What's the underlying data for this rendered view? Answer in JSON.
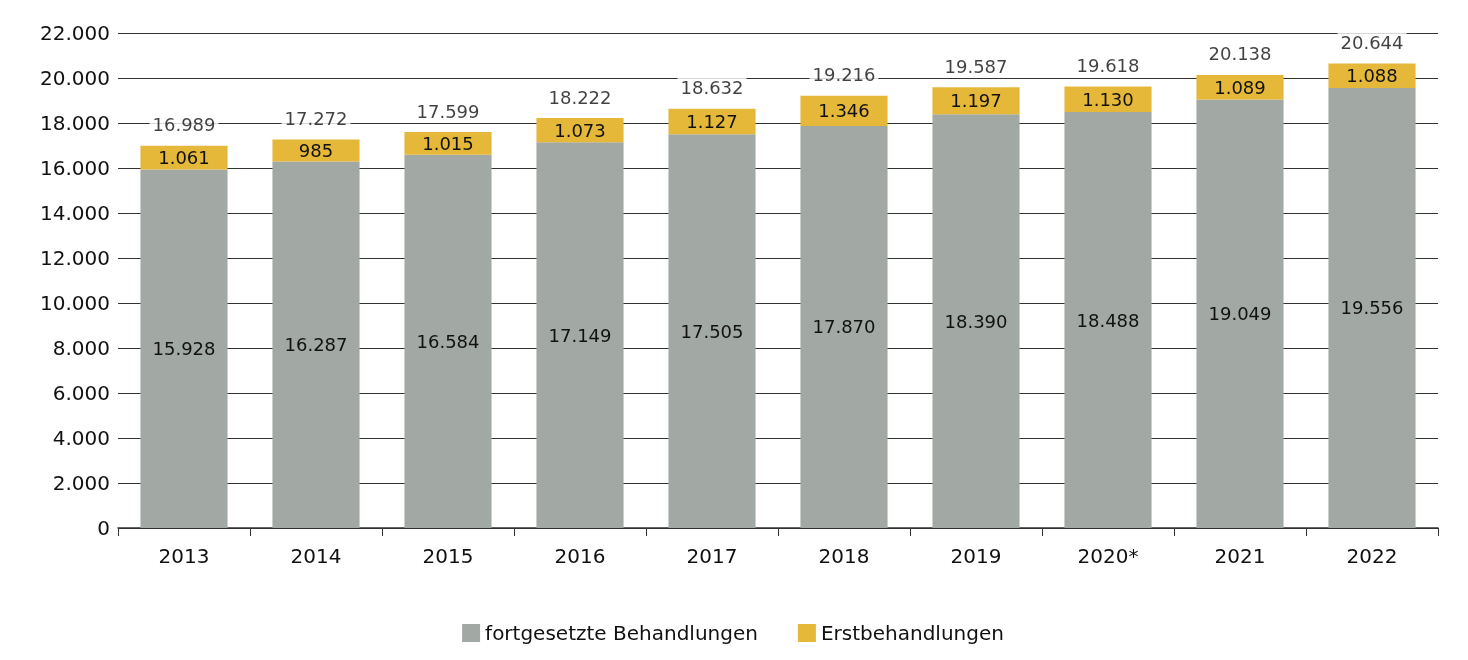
{
  "chart_data": {
    "type": "bar",
    "stacked": true,
    "categories": [
      "2013",
      "2014",
      "2015",
      "2016",
      "2017",
      "2018",
      "2019",
      "2020*",
      "2021",
      "2022"
    ],
    "series": [
      {
        "name": "fortgesetzte Behandlungen",
        "color": "#a2a8a3",
        "values": [
          15928,
          16287,
          16584,
          17149,
          17505,
          17870,
          18390,
          18488,
          19049,
          19556
        ],
        "value_labels": [
          "15.928",
          "16.287",
          "16.584",
          "17.149",
          "17.505",
          "17.870",
          "18.390",
          "18.488",
          "19.049",
          "19.556"
        ]
      },
      {
        "name": "Erstbehandlungen",
        "color": "#e5b83a",
        "values": [
          1061,
          985,
          1015,
          1073,
          1127,
          1346,
          1197,
          1130,
          1089,
          1088
        ],
        "value_labels": [
          "1.061",
          "985",
          "1.015",
          "1.073",
          "1.127",
          "1.346",
          "1.197",
          "1.130",
          "1.089",
          "1.088"
        ]
      }
    ],
    "totals": [
      "16.989",
      "17.272",
      "17.599",
      "18.222",
      "18.632",
      "19.216",
      "19.587",
      "19.618",
      "20.138",
      "20.644"
    ],
    "ylim": [
      0,
      22000
    ],
    "yticks": [
      0,
      {
        "value": 2000,
        "label": "2.000"
      },
      {
        "value": 4000,
        "label": "4.000"
      },
      {
        "value": 6000,
        "label": "6.000"
      },
      {
        "value": 8000,
        "label": "8.000"
      },
      {
        "value": 10000,
        "label": "10.000"
      },
      {
        "value": 12000,
        "label": "12.000"
      },
      {
        "value": 14000,
        "label": "14.000"
      },
      {
        "value": 16000,
        "label": "16.000"
      },
      {
        "value": 18000,
        "label": "18.000"
      },
      {
        "value": 20000,
        "label": "20.000"
      },
      {
        "value": 22000,
        "label": "22.000"
      }
    ],
    "grid": "y",
    "legend": "bottom"
  }
}
